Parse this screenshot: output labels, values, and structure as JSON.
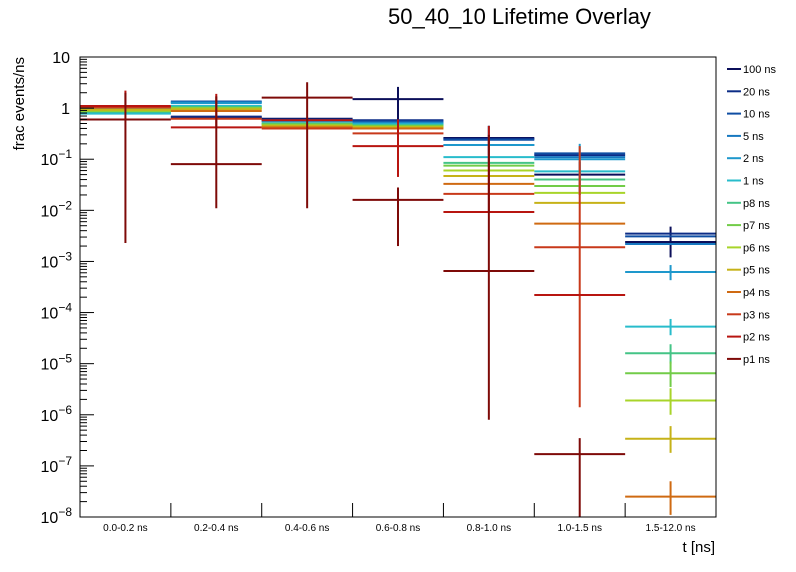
{
  "chart_data": {
    "type": "line",
    "subtype": "histogram-overlay-errorbars",
    "title": "50_40_10 Lifetime Overlay",
    "xlabel": "t [ns]",
    "ylabel": "frac events/ns",
    "yscale": "log",
    "ylim": [
      1e-08,
      10
    ],
    "y_ticks": [
      {
        "base": "10",
        "exp": ""
      },
      {
        "base": "1",
        "exp": ""
      },
      {
        "base": "10",
        "exp": "−1"
      },
      {
        "base": "10",
        "exp": "−2"
      },
      {
        "base": "10",
        "exp": "−3"
      },
      {
        "base": "10",
        "exp": "−4"
      },
      {
        "base": "10",
        "exp": "−5"
      },
      {
        "base": "10",
        "exp": "−6"
      },
      {
        "base": "10",
        "exp": "−7"
      },
      {
        "base": "10",
        "exp": "−8"
      }
    ],
    "categories": [
      "0.0-0.2 ns",
      "0.2-0.4 ns",
      "0.4-0.6 ns",
      "0.6-0.8 ns",
      "0.8-1.0 ns",
      "1.0-1.5 ns",
      "1.5-12.0 ns"
    ],
    "legend_position": "right",
    "grid": false,
    "series": [
      {
        "name": "100 ns",
        "color": "#0b0f5a",
        "values": [
          0.95,
          0.66,
          0.62,
          1.5,
          0.26,
          0.05,
          0.0024
        ],
        "err_hi": [
          null,
          null,
          null,
          2.6,
          0.45,
          0.09,
          0.0048
        ],
        "err_lo": [
          null,
          null,
          null,
          0.55,
          0.12,
          0.02,
          0.0012
        ]
      },
      {
        "name": "20 ns",
        "color": "#0c2c86",
        "values": [
          0.97,
          0.68,
          0.6,
          0.58,
          0.25,
          0.12,
          0.0035
        ],
        "err_hi": [
          null,
          null,
          null,
          null,
          null,
          null,
          null
        ],
        "err_lo": [
          null,
          null,
          null,
          null,
          null,
          null,
          null
        ]
      },
      {
        "name": "10 ns",
        "color": "#0f4ea3",
        "values": [
          0.98,
          1.35,
          0.58,
          0.55,
          0.24,
          0.13,
          0.0031
        ],
        "err_hi": [
          null,
          null,
          null,
          null,
          null,
          null,
          null
        ],
        "err_lo": [
          null,
          null,
          null,
          null,
          null,
          null,
          null
        ]
      },
      {
        "name": "5 ns",
        "color": "#1778c0",
        "values": [
          1.0,
          1.3,
          0.56,
          0.52,
          0.19,
          0.11,
          0.0022
        ],
        "err_hi": [
          null,
          null,
          null,
          null,
          null,
          null,
          null
        ],
        "err_lo": [
          null,
          null,
          null,
          null,
          null,
          null,
          null
        ]
      },
      {
        "name": "2 ns",
        "color": "#1e98cc",
        "values": [
          0.8,
          1.25,
          0.55,
          0.5,
          0.19,
          0.1,
          0.00062
        ],
        "err_hi": [
          null,
          null,
          null,
          null,
          0.45,
          0.2,
          0.00085
        ],
        "err_lo": [
          null,
          null,
          null,
          null,
          0.07,
          0.04,
          0.00043
        ]
      },
      {
        "name": "1 ns",
        "color": "#28bccb",
        "values": [
          0.78,
          1.1,
          0.5,
          0.48,
          0.11,
          0.058,
          5.3e-05
        ],
        "err_hi": [
          null,
          null,
          null,
          null,
          null,
          null,
          7.5e-05
        ],
        "err_lo": [
          null,
          null,
          null,
          null,
          null,
          null,
          3.6e-05
        ]
      },
      {
        "name": "p8 ns",
        "color": "#44c486",
        "values": [
          0.85,
          1.05,
          0.5,
          0.46,
          0.085,
          0.04,
          1.6e-05
        ],
        "err_hi": [
          null,
          null,
          null,
          null,
          null,
          null,
          2.4e-05
        ],
        "err_lo": [
          null,
          null,
          null,
          null,
          null,
          null,
          1e-05
        ]
      },
      {
        "name": "p7 ns",
        "color": "#72cc48",
        "values": [
          0.88,
          1.0,
          0.48,
          0.45,
          0.075,
          0.03,
          6.5e-06
        ],
        "err_hi": [
          null,
          null,
          null,
          null,
          null,
          null,
          1.1e-05
        ],
        "err_lo": [
          null,
          null,
          null,
          null,
          null,
          null,
          3.5e-06
        ]
      },
      {
        "name": "p6 ns",
        "color": "#a8d42a",
        "values": [
          0.9,
          0.98,
          0.46,
          0.43,
          0.06,
          0.022,
          1.9e-06
        ],
        "err_hi": [
          null,
          null,
          null,
          null,
          null,
          null,
          3.3e-06
        ],
        "err_lo": [
          null,
          null,
          null,
          null,
          null,
          null,
          1e-06
        ]
      },
      {
        "name": "p5 ns",
        "color": "#c6b218",
        "values": [
          0.93,
          0.95,
          0.45,
          0.42,
          0.047,
          0.014,
          3.4e-07
        ],
        "err_hi": [
          null,
          null,
          null,
          null,
          null,
          null,
          6e-07
        ],
        "err_lo": [
          null,
          null,
          null,
          null,
          null,
          null,
          1.8e-07
        ]
      },
      {
        "name": "p4 ns",
        "color": "#cf6a12",
        "values": [
          1.02,
          0.88,
          0.42,
          0.4,
          0.033,
          0.0055,
          2.5e-08
        ],
        "err_hi": [
          null,
          null,
          null,
          null,
          null,
          null,
          5e-08
        ],
        "err_lo": [
          null,
          null,
          null,
          null,
          null,
          null,
          1.1e-08
        ]
      },
      {
        "name": "p3 ns",
        "color": "#c8391a",
        "values": [
          1.05,
          0.62,
          0.4,
          0.32,
          0.021,
          0.0019,
          null
        ],
        "err_hi": [
          null,
          null,
          null,
          null,
          null,
          0.18,
          null
        ],
        "err_lo": [
          null,
          null,
          null,
          null,
          null,
          1.4e-06,
          null
        ]
      },
      {
        "name": "p2 ns",
        "color": "#b81510",
        "values": [
          1.1,
          0.42,
          0.58,
          0.18,
          0.0093,
          0.00022,
          null
        ],
        "err_hi": [
          2.2,
          1.9,
          null,
          0.6,
          0.45,
          null,
          null
        ],
        "err_lo": [
          null,
          null,
          null,
          0.045,
          null,
          null,
          null
        ]
      },
      {
        "name": "p1 ns",
        "color": "#7e0a08",
        "values": [
          0.6,
          0.08,
          1.6,
          0.016,
          0.00065,
          1.7e-07,
          null
        ],
        "err_hi": [
          2.0,
          1.7,
          3.2,
          0.028,
          0.3,
          3.5e-07,
          null
        ],
        "err_lo": [
          0.0023,
          0.011,
          0.011,
          0.002,
          8e-07,
          1e-08,
          null
        ]
      }
    ]
  }
}
